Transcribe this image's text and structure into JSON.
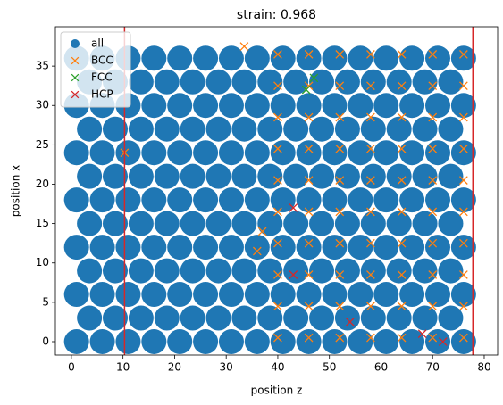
{
  "chart_data": {
    "type": "scatter",
    "title": "strain: 0.968",
    "xlabel": "position z",
    "ylabel": "position x",
    "xlim": [
      -3.1,
      82.6
    ],
    "ylim": [
      -1.7,
      40.0
    ],
    "xticks": [
      0,
      10,
      20,
      30,
      40,
      50,
      60,
      70,
      80
    ],
    "yticks": [
      0,
      5,
      10,
      15,
      20,
      25,
      30,
      35
    ],
    "legend": "upper left",
    "vlines": [
      {
        "x": 10.3,
        "color": "#d62728"
      },
      {
        "x": 77.8,
        "color": "#d62728"
      }
    ],
    "series": [
      {
        "name": "all",
        "color": "#1f77b4",
        "marker": "o",
        "x": [
          1,
          6,
          11,
          16,
          21,
          26,
          31,
          36,
          41,
          46,
          51,
          56,
          61,
          66,
          71,
          76,
          3.5,
          8.5,
          13.5,
          18.5,
          23.5,
          28.5,
          33.5,
          38.5,
          43.5,
          48.5,
          53.5,
          58.5,
          63.5,
          68.5,
          73.5,
          1,
          6,
          11,
          16,
          21,
          26,
          31,
          36,
          41,
          46,
          51,
          56,
          61,
          66,
          71,
          76,
          3.5,
          8.5,
          13.5,
          18.5,
          23.5,
          28.5,
          33.5,
          38.5,
          43.5,
          48.5,
          53.5,
          58.5,
          63.5,
          68.5,
          73.5,
          1,
          6,
          11,
          16,
          21,
          26,
          31,
          36,
          41,
          46,
          51,
          56,
          61,
          66,
          71,
          76,
          3.5,
          8.5,
          13.5,
          18.5,
          23.5,
          28.5,
          33.5,
          38.5,
          43.5,
          48.5,
          53.5,
          58.5,
          63.5,
          68.5,
          73.5,
          1,
          6,
          11,
          16,
          21,
          26,
          31,
          36,
          41,
          46,
          51,
          56,
          61,
          66,
          71,
          76,
          3.5,
          8.5,
          13.5,
          18.5,
          23.5,
          28.5,
          33.5,
          38.5,
          43.5,
          48.5,
          53.5,
          58.5,
          63.5,
          68.5,
          73.5,
          1,
          6,
          11,
          16,
          21,
          26,
          31,
          36,
          41,
          46,
          51,
          56,
          61,
          66,
          71,
          76,
          3.5,
          8.5,
          13.5,
          18.5,
          23.5,
          28.5,
          33.5,
          38.5,
          43.5,
          48.5,
          53.5,
          58.5,
          63.5,
          68.5,
          73.5,
          1,
          6,
          11,
          16,
          21,
          26,
          31,
          36,
          41,
          46,
          51,
          56,
          61,
          66,
          71,
          76,
          3.5,
          8.5,
          13.5,
          18.5,
          23.5,
          28.5,
          33.5,
          38.5,
          43.5,
          48.5,
          53.5,
          58.5,
          63.5,
          68.5,
          73.5,
          1,
          6,
          11,
          16,
          21,
          26,
          31,
          36,
          41,
          46,
          51,
          56,
          61,
          66,
          71,
          76
        ],
        "y": [
          0,
          0,
          0,
          0,
          0,
          0,
          0,
          0,
          0,
          0,
          0,
          0,
          0,
          0,
          0,
          0,
          3,
          3,
          3,
          3,
          3,
          3,
          3,
          3,
          3,
          3,
          3,
          3,
          3,
          3,
          3,
          6,
          6,
          6,
          6,
          6,
          6,
          6,
          6,
          6,
          6,
          6,
          6,
          6,
          6,
          6,
          6,
          9,
          9,
          9,
          9,
          9,
          9,
          9,
          9,
          9,
          9,
          9,
          9,
          9,
          9,
          9,
          12,
          12,
          12,
          12,
          12,
          12,
          12,
          12,
          12,
          12,
          12,
          12,
          12,
          12,
          12,
          12,
          15,
          15,
          15,
          15,
          15,
          15,
          15,
          15,
          15,
          15,
          15,
          15,
          15,
          15,
          15,
          18,
          18,
          18,
          18,
          18,
          18,
          18,
          18,
          18,
          18,
          18,
          18,
          18,
          18,
          18,
          18,
          21,
          21,
          21,
          21,
          21,
          21,
          21,
          21,
          21,
          21,
          21,
          21,
          21,
          21,
          21,
          24,
          24,
          24,
          24,
          24,
          24,
          24,
          24,
          24,
          24,
          24,
          24,
          24,
          24,
          24,
          24,
          27,
          27,
          27,
          27,
          27,
          27,
          27,
          27,
          27,
          27,
          27,
          27,
          27,
          27,
          27,
          30,
          30,
          30,
          30,
          30,
          30,
          30,
          30,
          30,
          30,
          30,
          30,
          30,
          30,
          30,
          30,
          33,
          33,
          33,
          33,
          33,
          33,
          33,
          33,
          33,
          33,
          33,
          33,
          33,
          33,
          33,
          36,
          36,
          36,
          36,
          36,
          36,
          36,
          36,
          36,
          36,
          36,
          36,
          36,
          36,
          36,
          36
        ]
      },
      {
        "name": "BCC",
        "color": "#ff7f0e",
        "marker": "x",
        "x": [
          10.3,
          37,
          36,
          33.5,
          40,
          46,
          52,
          58,
          64,
          70,
          76,
          40,
          46,
          52,
          58,
          64,
          70,
          76,
          40,
          46,
          52,
          58,
          64,
          70,
          76,
          40,
          46,
          52,
          58,
          64,
          70,
          76,
          40,
          46,
          52,
          58,
          64,
          70,
          76,
          40,
          46,
          52,
          58,
          64,
          70,
          76,
          40,
          46,
          52,
          58,
          64,
          70,
          76,
          40,
          46,
          52,
          58,
          64,
          70,
          76,
          40,
          46,
          52,
          58,
          64,
          70,
          76,
          40,
          46,
          52,
          58,
          64,
          70,
          76
        ],
        "y": [
          24,
          14,
          11.5,
          37.5,
          0.5,
          0.5,
          0.5,
          0.5,
          0.5,
          0.5,
          0.5,
          4.5,
          4.5,
          4.5,
          4.5,
          4.5,
          4.5,
          4.5,
          8.5,
          8.5,
          8.5,
          8.5,
          8.5,
          8.5,
          8.5,
          12.5,
          12.5,
          12.5,
          12.5,
          12.5,
          12.5,
          12.5,
          16.5,
          16.5,
          16.5,
          16.5,
          16.5,
          16.5,
          16.5,
          20.5,
          20.5,
          20.5,
          20.5,
          20.5,
          20.5,
          20.5,
          24.5,
          24.5,
          24.5,
          24.5,
          24.5,
          24.5,
          24.5,
          28.5,
          28.5,
          28.5,
          28.5,
          28.5,
          28.5,
          28.5,
          32.5,
          32.5,
          32.5,
          32.5,
          32.5,
          32.5,
          32.5,
          36.5,
          36.5,
          36.5,
          36.5,
          36.5,
          36.5,
          36.5
        ]
      },
      {
        "name": "FCC",
        "color": "#2ca02c",
        "marker": "x",
        "x": [
          45.5,
          47
        ],
        "y": [
          32,
          33.5
        ]
      },
      {
        "name": "HCP",
        "color": "#d62728",
        "marker": "x",
        "x": [
          43,
          43,
          54,
          68,
          72
        ],
        "y": [
          17,
          8.5,
          2.5,
          1,
          0
        ]
      }
    ]
  }
}
